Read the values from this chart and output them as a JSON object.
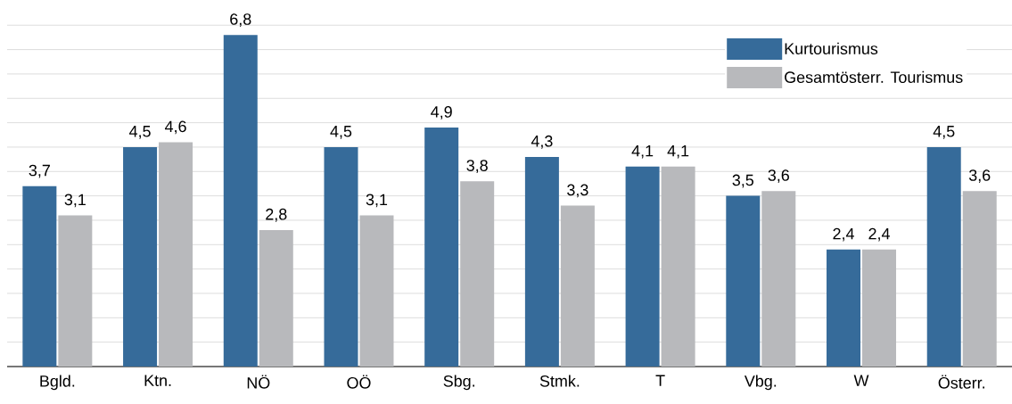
{
  "chart_data": {
    "type": "bar",
    "categories": [
      "Bgld.",
      "Ktn.",
      "NÖ",
      "OÖ",
      "Sbg.",
      "Stmk.",
      "T",
      "Vbg.",
      "W",
      "Österr."
    ],
    "series": [
      {
        "name": "Kurtourismus",
        "color": "#366b9a",
        "values": [
          3.7,
          4.5,
          6.8,
          4.5,
          4.9,
          4.3,
          4.1,
          3.5,
          2.4,
          4.5
        ],
        "value_labels": [
          "3,7",
          "4,5",
          "6,8",
          "4,5",
          "4,9",
          "4,3",
          "4,1",
          "3,5",
          "2,4",
          "4,5"
        ]
      },
      {
        "name": "Gesamtösterr. Tourismus",
        "color": "#b8b9bc",
        "values": [
          3.1,
          4.6,
          2.8,
          3.1,
          3.8,
          3.3,
          4.1,
          3.6,
          2.4,
          3.6
        ],
        "value_labels": [
          "3,1",
          "4,6",
          "2,8",
          "3,1",
          "3,8",
          "3,3",
          "4,1",
          "3,6",
          "2,4",
          "3,6"
        ]
      }
    ],
    "tick_labels": "x",
    "grid": "y",
    "legend": "top right"
  }
}
